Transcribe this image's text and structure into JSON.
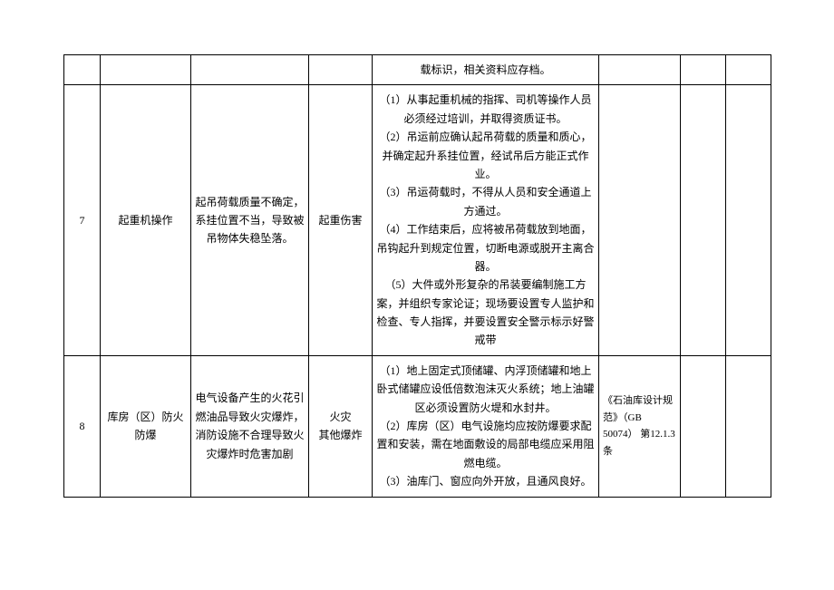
{
  "table": {
    "rows": [
      {
        "num": "",
        "name": "",
        "hazard": "",
        "type": "",
        "measure": "载标识，相关资料应存档。",
        "basis": "",
        "blank1": "",
        "blank2": ""
      },
      {
        "num": "7",
        "name": "起重机操作",
        "hazard": "起吊荷载质量不确定，系挂位置不当，导致被吊物体失稳坠落。",
        "type": "起重伤害",
        "measure": "（1）从事起重机械的指挥、司机等操作人员必须经过培训，并取得资质证书。\n（2）吊运前应确认起吊荷载的质量和质心，并确定起升系挂位置，经试吊后方能正式作业。\n（3）吊运荷载时，不得从人员和安全通道上方通过。\n（4）工作结束后，应将被吊荷载放到地面，吊钩起升到规定位置，切断电源或脱开主离合器。\n（5）大件或外形复杂的吊装要编制施工方案，并组织专家论证；现场要设置专人监护和检查、专人指挥，并要设置安全警示标示好警戒带",
        "basis": "",
        "blank1": "",
        "blank2": ""
      },
      {
        "num": "8",
        "name": "库房（区）防火防爆",
        "hazard": "电气设备产生的火花引燃油品导致火灾爆炸，消防设施不合理导致火灾爆炸时危害加剧",
        "type": "火灾\n其他爆炸",
        "measure": "（1）地上固定式顶储罐、内浮顶储罐和地上卧式储罐应设低倍数泡沫灭火系统；地上油罐区必须设置防火堤和水封井。\n（2）库房（区）电气设施均应按防爆要求配置和安装，需在地面敷设的局部电缆应采用阻燃电缆。\n（3）油库门、窗应向外开放，且通风良好。",
        "basis": "《石油库设计规范》（GB 50074） 第12.1.3 条",
        "blank1": "",
        "blank2": ""
      }
    ]
  }
}
